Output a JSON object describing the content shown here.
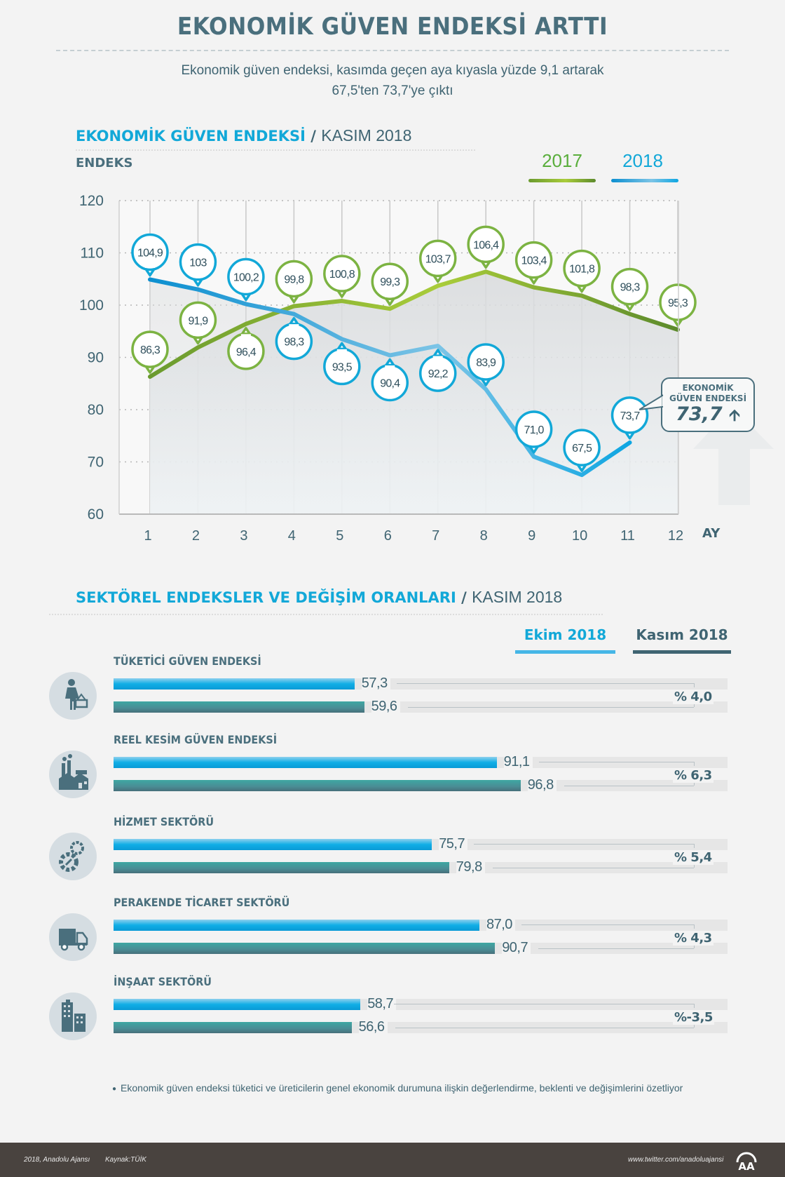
{
  "header": {
    "title": "EKONOMİK GÜVEN ENDEKSİ ARTTI",
    "subtitle_line1": "Ekonomik güven endeksi, kasımda geçen aya kıyasla yüzde 9,1 artarak",
    "subtitle_line2": "67,5'ten 73,7'ye çıktı"
  },
  "section1": {
    "heading": "EKONOMİK GÜVEN ENDEKSİ",
    "slash": "/",
    "heading_sub": "KASIM 2018"
  },
  "callout": {
    "line1": "EKONOMİK",
    "line2": "GÜVEN ENDEKSİ",
    "value": "73,7",
    "icon": "arrow-up-icon"
  },
  "colors": {
    "green_2017": "#7cb342",
    "blue_2018": "#12a8d8",
    "dark_teal": "#3f6472",
    "ekim_bar": "#10aee6",
    "kasim_bar": "#4a8c94"
  },
  "chart_data": [
    {
      "type": "line",
      "title": "EKONOMİK GÜVEN ENDEKSİ / KASIM 2018",
      "ylabel": "ENDEKS",
      "xlabel": "AY",
      "ylim": [
        60,
        120
      ],
      "yticks": [
        60,
        70,
        80,
        90,
        100,
        110,
        120
      ],
      "x": [
        1,
        2,
        3,
        4,
        5,
        6,
        7,
        8,
        9,
        10,
        11,
        12
      ],
      "grid": true,
      "legend": "top-right",
      "series": [
        {
          "name": "2017",
          "values": [
            86.3,
            91.9,
            96.4,
            99.8,
            100.8,
            99.3,
            103.7,
            106.4,
            103.4,
            101.8,
            98.3,
            95.3
          ],
          "labels": [
            "86,3",
            "91,9",
            "96,4",
            "99,8",
            "100,8",
            "99,3",
            "103,7",
            "106,4",
            "103,4",
            "101,8",
            "98,3",
            "95,3"
          ],
          "label_position": [
            "above",
            "above",
            "below",
            "above",
            "above",
            "above",
            "above",
            "above",
            "above",
            "above",
            "above",
            "above"
          ]
        },
        {
          "name": "2018",
          "values": [
            104.9,
            103,
            100.2,
            98.3,
            93.5,
            90.4,
            92.2,
            83.9,
            71.0,
            67.5,
            73.7
          ],
          "labels": [
            "104,9",
            "103",
            "100,2",
            "98,3",
            "93,5",
            "90,4",
            "92,2",
            "83,9",
            "71,0",
            "67,5",
            "73,7"
          ],
          "label_position": [
            "above",
            "above",
            "above",
            "below",
            "below",
            "below",
            "below",
            "above",
            "above",
            "above",
            "above"
          ]
        }
      ]
    },
    {
      "type": "bar",
      "title": "SEKTÖREL ENDEKSLER VE DEĞİŞİM ORANLARI / KASIM 2018",
      "orientation": "horizontal",
      "legend": "top-right",
      "categories": [
        "TÜKETİCİ GÜVEN ENDEKSİ",
        "REEL KESİM GÜVEN ENDEKSİ",
        "HİZMET SEKTÖRÜ",
        "PERAKENDE TİCARET SEKTÖRÜ",
        "İNŞAAT SEKTÖRÜ"
      ],
      "series": [
        {
          "name": "Ekim 2018",
          "values": [
            57.3,
            91.1,
            75.7,
            87.0,
            58.7
          ],
          "labels": [
            "57,3",
            "91,1",
            "75,7",
            "87,0",
            "58,7"
          ]
        },
        {
          "name": "Kasım 2018",
          "values": [
            59.6,
            96.8,
            79.8,
            90.7,
            56.6
          ],
          "labels": [
            "59,6",
            "96,8",
            "79,8",
            "90,7",
            "56,6"
          ]
        }
      ],
      "changes": [
        "% 4,0",
        "% 6,3",
        "% 5,4",
        "% 4,3",
        "%-3,5"
      ],
      "icons": [
        "shopper-icon",
        "factory-icon",
        "gears-icon",
        "truck-icon",
        "buildings-icon"
      ]
    }
  ],
  "section2": {
    "heading": "SEKTÖREL ENDEKSLER VE DEĞİŞİM ORANLARI",
    "slash": "/",
    "heading_sub": "KASIM 2018",
    "legend_ekim": "Ekim 2018",
    "legend_kasim": "Kasım 2018"
  },
  "footnote": "Ekonomik güven endeksi tüketici ve üreticilerin genel ekonomik durumuna ilişkin değerlendirme, beklenti ve değişimlerini özetliyor",
  "footer": {
    "copyright": "2018, Anadolu Ajansı",
    "source": "Kaynak:TÜİK",
    "twitter": "www.twitter.com/anadoluajansi",
    "logo": "AA"
  }
}
